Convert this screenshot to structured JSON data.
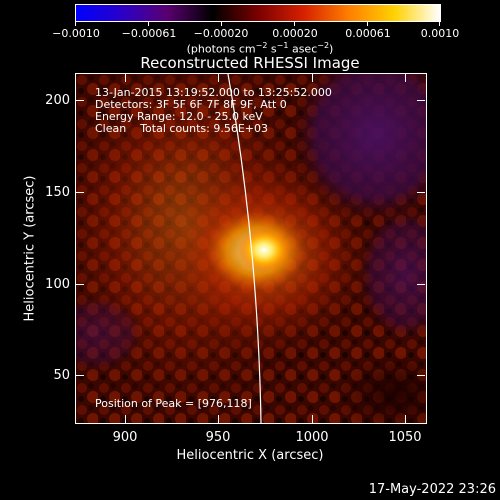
{
  "colorbar": {
    "ticks": [
      "−0.0010",
      "−0.00061",
      "−0.00020",
      "0.00020",
      "0.00061",
      "0.0010"
    ],
    "unit_prefix": "(photons cm",
    "unit_exp1": "−2",
    "unit_mid1": " s",
    "unit_exp2": "−1",
    "unit_mid2": " asec",
    "unit_exp3": "−2",
    "unit_suffix": ")",
    "colors": [
      "#0000ff",
      "#2a00c8",
      "#5a0070",
      "#000000",
      "#7a0000",
      "#d62000",
      "#ff7f00",
      "#ffd200",
      "#ffffff"
    ]
  },
  "plot": {
    "title": "Reconstructed RHESSI Image",
    "info_lines": [
      "13-Jan-2015 13:19:52.000 to 13:25:52.000",
      "Detectors: 3F 5F 6F 7F 8F 9F, Att 0",
      "Energy Range: 12.0 - 25.0 keV",
      "Clean    Total counts: 9.56E+03"
    ],
    "peak_label": "Position of Peak = [976,118]",
    "xlabel": "Heliocentric X (arcsec)",
    "ylabel": "Heliocentric Y (arcsec)",
    "x_ticks": [
      "900",
      "950",
      "1000",
      "1050"
    ],
    "y_ticks": [
      "200",
      "150",
      "100",
      "50"
    ]
  },
  "footer": {
    "timestamp": "17-May-2022 23:26"
  }
}
